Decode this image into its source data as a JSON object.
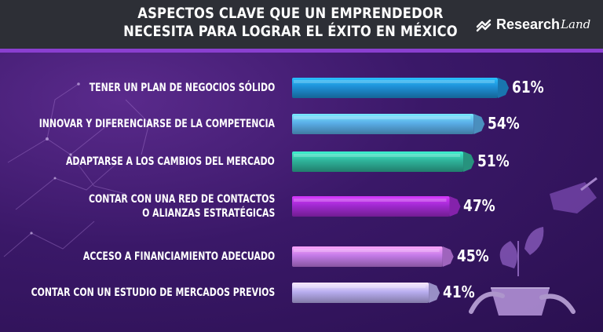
{
  "header": {
    "title_line1": "ASPECTOS CLAVE QUE UN EMPRENDEDOR",
    "title_line2": "NECESITA PARA LOGRAR EL ÉXITO EN MÉXICO",
    "brand_name": "Research",
    "brand_suffix": "Land"
  },
  "chart_data": {
    "type": "bar",
    "orientation": "horizontal",
    "title": "ASPECTOS CLAVE QUE UN EMPRENDEDOR NECESITA PARA LOGRAR EL ÉXITO EN MÉXICO",
    "categories": [
      [
        "TENER UN PLAN DE NEGOCIOS SÓLIDO"
      ],
      [
        "INNOVAR Y DIFERENCIARSE DE LA COMPETENCIA"
      ],
      [
        "ADAPTARSE A LOS CAMBIOS DEL MERCADO"
      ],
      [
        "CONTAR CON UNA RED DE CONTACTOS",
        "O ALIANZAS ESTRATÉGICAS"
      ],
      [
        "ACCESO A FINANCIAMIENTO ADECUADO"
      ],
      [
        "CONTAR CON UN ESTUDIO DE MERCADOS PREVIOS"
      ]
    ],
    "values": [
      61,
      54,
      51,
      47,
      45,
      41
    ],
    "value_labels": [
      "61%",
      "54%",
      "51%",
      "47%",
      "45%",
      "41%"
    ],
    "unit": "%",
    "bar_colors": [
      "#1e8fd6",
      "#5aaee8",
      "#2fb39a",
      "#a12ad1",
      "#c27ae6",
      "#b9aef0"
    ],
    "xlabel": "",
    "ylabel": "",
    "xlim": [
      0,
      61
    ]
  }
}
